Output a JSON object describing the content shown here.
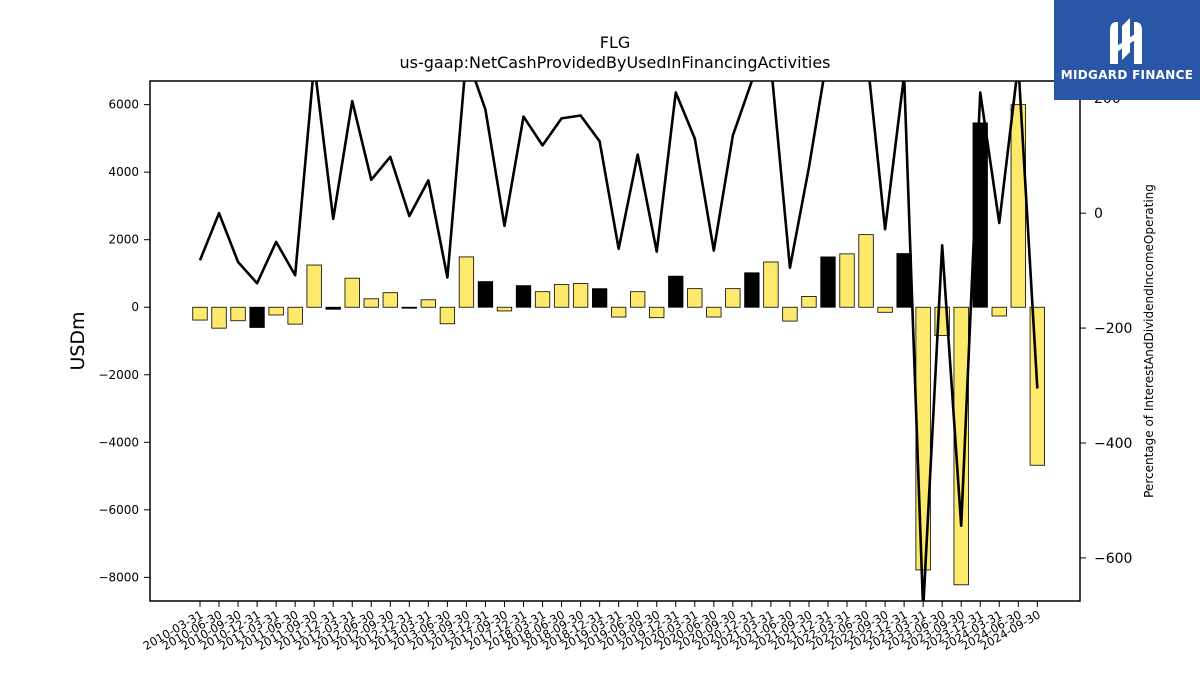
{
  "chart_data": {
    "type": "bar",
    "title": "FLG",
    "subtitle": "us-gaap:NetCashProvidedByUsedInFinancingActivities",
    "ylabel": "USDm",
    "y2label": "Percentage of InterestAndDividendIncomeOperating",
    "ylim": [
      -8700,
      6700
    ],
    "y2lim": [
      -675,
      230
    ],
    "yticks": [
      -8000,
      -6000,
      -4000,
      -2000,
      0,
      2000,
      4000,
      6000
    ],
    "y2ticks": [
      -600,
      -400,
      -200,
      0,
      200
    ],
    "grid": false,
    "categories": [
      "2010-03-31",
      "2010-06-30",
      "2010-09-30",
      "2010-12-31",
      "2011-03-31",
      "2011-06-30",
      "2011-09-30",
      "2011-12-31",
      "2012-03-31",
      "2012-06-30",
      "2012-09-30",
      "2012-12-31",
      "2013-03-31",
      "2013-06-30",
      "2013-09-30",
      "2013-12-31",
      "2017-09-30",
      "2017-12-31",
      "2018-03-31",
      "2018-06-30",
      "2018-09-30",
      "2018-12-31",
      "2019-03-31",
      "2019-06-30",
      "2019-09-30",
      "2019-12-31",
      "2020-03-31",
      "2020-06-30",
      "2020-09-30",
      "2020-12-31",
      "2021-03-31",
      "2021-06-30",
      "2021-09-30",
      "2021-12-31",
      "2022-03-31",
      "2022-06-30",
      "2022-09-30",
      "2022-12-31",
      "2023-03-31",
      "2023-06-30",
      "2023-09-30",
      "2023-12-31",
      "2024-03-31",
      "2024-06-30",
      "2024-09-30"
    ],
    "series": [
      {
        "type": "bar",
        "values": [
          -380,
          -620,
          -400,
          -600,
          -230,
          -500,
          1250,
          -60,
          860,
          250,
          430,
          -30,
          220,
          -490,
          1490,
          760,
          -110,
          640,
          460,
          670,
          700,
          550,
          -290,
          460,
          -310,
          920,
          550,
          -290,
          550,
          1020,
          1340,
          -410,
          320,
          1490,
          1580,
          2150,
          -150,
          1590,
          -7780,
          -840,
          -8220,
          5460,
          -260,
          6000,
          -4680
        ],
        "bar_colors": [
          "#fde96b",
          "#fde96b",
          "#fde96b",
          "#000000",
          "#fde96b",
          "#fde96b",
          "#fde96b",
          "#000000",
          "#fde96b",
          "#fde96b",
          "#fde96b",
          "#000000",
          "#fde96b",
          "#fde96b",
          "#fde96b",
          "#000000",
          "#fde96b",
          "#000000",
          "#fde96b",
          "#fde96b",
          "#fde96b",
          "#000000",
          "#fde96b",
          "#fde96b",
          "#fde96b",
          "#000000",
          "#fde96b",
          "#fde96b",
          "#fde96b",
          "#000000",
          "#fde96b",
          "#fde96b",
          "#fde96b",
          "#000000",
          "#fde96b",
          "#fde96b",
          "#fde96b",
          "#000000",
          "#fde96b",
          "#fde96b",
          "#fde96b",
          "#000000",
          "#fde96b",
          "#fde96b",
          "#fde96b"
        ]
      },
      {
        "type": "line",
        "axis": "right",
        "color": "#000000",
        "values": [
          -82,
          0,
          -85,
          -122,
          -50,
          -108,
          260,
          -10,
          195,
          58,
          98,
          -5,
          57,
          -112,
          275,
          180,
          -22,
          168,
          118,
          165,
          170,
          125,
          -62,
          102,
          -67,
          210,
          130,
          -65,
          135,
          230,
          260,
          -95,
          80,
          280,
          320,
          290,
          -28,
          240,
          -690,
          -56,
          -544,
          210,
          -17,
          260,
          -305
        ]
      }
    ]
  },
  "logo": {
    "text": "MIDGARD FINANCE",
    "bg": "#2a56a8"
  }
}
